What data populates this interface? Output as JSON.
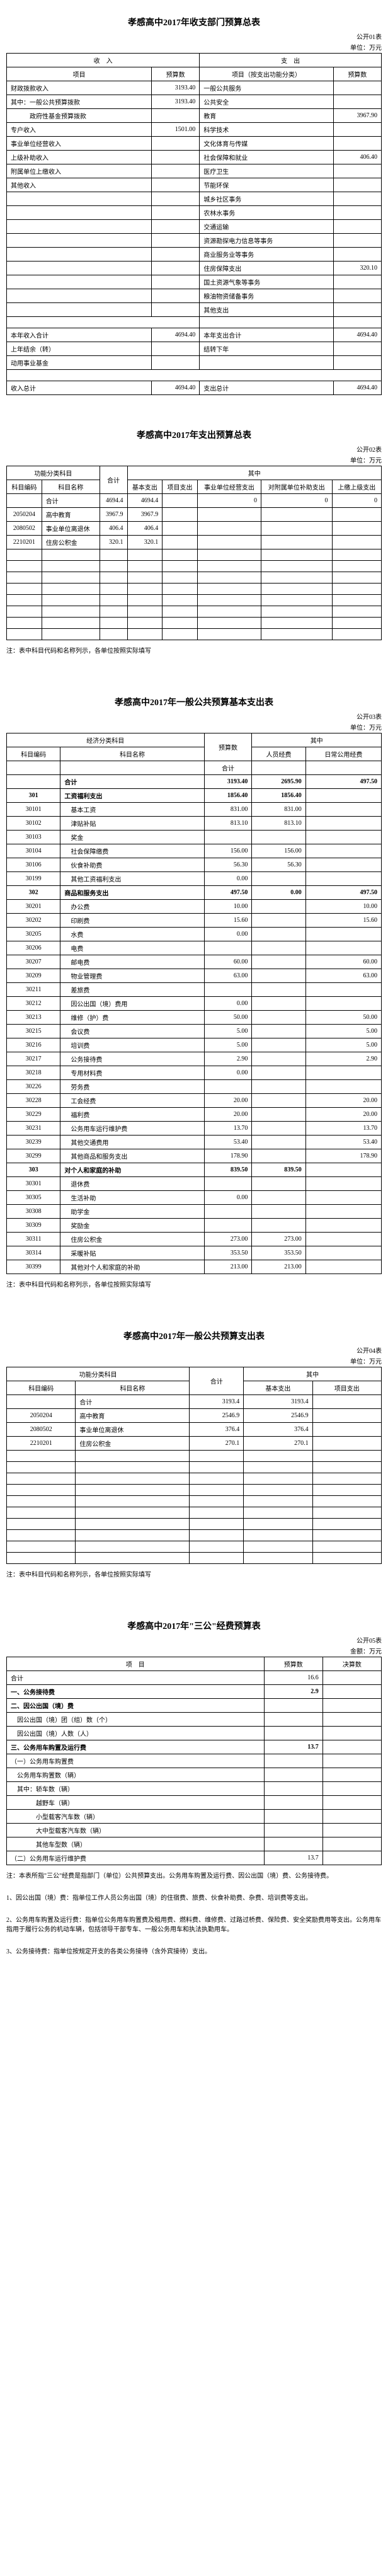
{
  "meta": {
    "unit_label": "单位：万元"
  },
  "t1": {
    "title": "孝感高中2017年收支部门预算总表",
    "corner": "公开01表",
    "income_header": "收　入",
    "expend_header": "支　出",
    "col_project": "项目",
    "col_budget": "预算数",
    "col_project2": "项目（按支出功能分类）",
    "col_budget2": "预算数",
    "rows_left": [
      {
        "name": "财政拨款收入",
        "val": "3193.40"
      },
      {
        "name": "其中：一般公共预算拨款",
        "val": "3193.40"
      },
      {
        "name": "　　　政府性基金预算拨款",
        "val": ""
      },
      {
        "name": "专户收入",
        "val": "1501.00"
      },
      {
        "name": "事业单位经营收入",
        "val": ""
      },
      {
        "name": "上级补助收入",
        "val": ""
      },
      {
        "name": "附属单位上缴收入",
        "val": ""
      },
      {
        "name": "其他收入",
        "val": ""
      },
      {
        "name": "",
        "val": ""
      },
      {
        "name": "",
        "val": ""
      },
      {
        "name": "",
        "val": ""
      },
      {
        "name": "",
        "val": ""
      },
      {
        "name": "",
        "val": ""
      },
      {
        "name": "",
        "val": ""
      },
      {
        "name": "",
        "val": ""
      }
    ],
    "rows_right": [
      {
        "name": "一般公共服务",
        "val": ""
      },
      {
        "name": "公共安全",
        "val": ""
      },
      {
        "name": "教育",
        "val": "3967.90"
      },
      {
        "name": "科学技术",
        "val": ""
      },
      {
        "name": "文化体育与传媒",
        "val": ""
      },
      {
        "name": "社会保障和就业",
        "val": "406.40"
      },
      {
        "name": "医疗卫生",
        "val": ""
      },
      {
        "name": "节能环保",
        "val": ""
      },
      {
        "name": "城乡社区事务",
        "val": ""
      },
      {
        "name": "农林水事务",
        "val": ""
      },
      {
        "name": "交通运输",
        "val": ""
      },
      {
        "name": "资源勘探电力信息等事务",
        "val": ""
      },
      {
        "name": "商业服务业等事务",
        "val": ""
      },
      {
        "name": "住房保障支出",
        "val": "320.10"
      },
      {
        "name": "国土资源气象等事务",
        "val": ""
      },
      {
        "name": "粮油物资储备事务",
        "val": ""
      },
      {
        "name": "其他支出",
        "val": ""
      }
    ],
    "sum_left_label": "本年收入合计",
    "sum_left_val": "4694.40",
    "sum_right_label": "本年支出合计",
    "sum_right_val": "4694.40",
    "carry_left": "上年结余（转）",
    "carry_right": "结转下年",
    "fund_left": "动用事业基金",
    "total_left_label": "收入总计",
    "total_left_val": "4694.40",
    "total_right_label": "支出总计",
    "total_right_val": "4694.40"
  },
  "t2": {
    "title": "孝感高中2017年支出预算总表",
    "corner": "公开02表",
    "h_func": "功能分类科目",
    "h_total": "合计",
    "h_inner": "其中",
    "h_code": "科目编码",
    "h_name": "科目名称",
    "h_basic": "基本支出",
    "h_proj": "项目支出",
    "h_biz": "事业单位经营支出",
    "h_aid": "对附属单位补助支出",
    "h_up": "上缴上级支出",
    "rows": [
      {
        "code": "",
        "name": "合计",
        "total": "4694.4",
        "basic": "4694.4",
        "proj": "",
        "biz": "0",
        "aid": "0",
        "up": "0"
      },
      {
        "code": "2050204",
        "name": "高中教育",
        "total": "3967.9",
        "basic": "3967.9",
        "proj": "",
        "biz": "",
        "aid": "",
        "up": ""
      },
      {
        "code": "2080502",
        "name": "事业单位离退休",
        "total": "406.4",
        "basic": "406.4",
        "proj": "",
        "biz": "",
        "aid": "",
        "up": ""
      },
      {
        "code": "2210201",
        "name": "住房公积金",
        "total": "320.1",
        "basic": "320.1",
        "proj": "",
        "biz": "",
        "aid": "",
        "up": ""
      }
    ],
    "empty_rows": 8,
    "note": "注：表中科目代码和名称列示，各单位按照实际填写"
  },
  "t3": {
    "title": "孝感高中2017年一般公共预算基本支出表",
    "corner": "公开03表",
    "h_econ": "经济分类科目",
    "h_code": "科目编码",
    "h_name": "科目名称",
    "h_budget": "预算数",
    "h_inner": "其中",
    "h_total": "合计",
    "h_person": "人员经费",
    "h_daily": "日常公用经费",
    "rows": [
      {
        "code": "",
        "name": "合计",
        "total": "3193.40",
        "p": "2695.90",
        "d": "497.50",
        "bold": true
      },
      {
        "code": "301",
        "name": "工资福利支出",
        "total": "1856.40",
        "p": "1856.40",
        "d": "",
        "bold": true
      },
      {
        "code": "30101",
        "name": "　基本工资",
        "total": "831.00",
        "p": "831.00",
        "d": ""
      },
      {
        "code": "30102",
        "name": "　津贴补贴",
        "total": "813.10",
        "p": "813.10",
        "d": ""
      },
      {
        "code": "30103",
        "name": "　奖金",
        "total": "",
        "p": "",
        "d": ""
      },
      {
        "code": "30104",
        "name": "　社会保障缴费",
        "total": "156.00",
        "p": "156.00",
        "d": ""
      },
      {
        "code": "30106",
        "name": "　伙食补助费",
        "total": "56.30",
        "p": "56.30",
        "d": ""
      },
      {
        "code": "30199",
        "name": "　其他工资福利支出",
        "total": "0.00",
        "p": "",
        "d": ""
      },
      {
        "code": "302",
        "name": "商品和服务支出",
        "total": "497.50",
        "p": "0.00",
        "d": "497.50",
        "bold": true
      },
      {
        "code": "30201",
        "name": "　办公费",
        "total": "10.00",
        "p": "",
        "d": "10.00"
      },
      {
        "code": "30202",
        "name": "　印刷费",
        "total": "15.60",
        "p": "",
        "d": "15.60"
      },
      {
        "code": "30205",
        "name": "　水费",
        "total": "0.00",
        "p": "",
        "d": ""
      },
      {
        "code": "30206",
        "name": "　电费",
        "total": "",
        "p": "",
        "d": ""
      },
      {
        "code": "30207",
        "name": "　邮电费",
        "total": "60.00",
        "p": "",
        "d": "60.00"
      },
      {
        "code": "30209",
        "name": "　物业管理费",
        "total": "63.00",
        "p": "",
        "d": "63.00"
      },
      {
        "code": "30211",
        "name": "　差旅费",
        "total": "",
        "p": "",
        "d": ""
      },
      {
        "code": "30212",
        "name": "　因公出国（境）费用",
        "total": "0.00",
        "p": "",
        "d": ""
      },
      {
        "code": "30213",
        "name": "　维修（护）费",
        "total": "50.00",
        "p": "",
        "d": "50.00"
      },
      {
        "code": "30215",
        "name": "　会议费",
        "total": "5.00",
        "p": "",
        "d": "5.00"
      },
      {
        "code": "30216",
        "name": "　培训费",
        "total": "5.00",
        "p": "",
        "d": "5.00"
      },
      {
        "code": "30217",
        "name": "　公务接待费",
        "total": "2.90",
        "p": "",
        "d": "2.90"
      },
      {
        "code": "30218",
        "name": "　专用材料费",
        "total": "0.00",
        "p": "",
        "d": ""
      },
      {
        "code": "30226",
        "name": "　劳务费",
        "total": "",
        "p": "",
        "d": ""
      },
      {
        "code": "30228",
        "name": "　工会经费",
        "total": "20.00",
        "p": "",
        "d": "20.00"
      },
      {
        "code": "30229",
        "name": "　福利费",
        "total": "20.00",
        "p": "",
        "d": "20.00"
      },
      {
        "code": "30231",
        "name": "　公务用车运行维护费",
        "total": "13.70",
        "p": "",
        "d": "13.70"
      },
      {
        "code": "30239",
        "name": "　其他交通费用",
        "total": "53.40",
        "p": "",
        "d": "53.40"
      },
      {
        "code": "30299",
        "name": "　其他商品和服务支出",
        "total": "178.90",
        "p": "",
        "d": "178.90"
      },
      {
        "code": "303",
        "name": "对个人和家庭的补助",
        "total": "839.50",
        "p": "839.50",
        "d": "",
        "bold": true
      },
      {
        "code": "30301",
        "name": "　退休费",
        "total": "",
        "p": "",
        "d": ""
      },
      {
        "code": "30305",
        "name": "　生活补助",
        "total": "0.00",
        "p": "",
        "d": ""
      },
      {
        "code": "30308",
        "name": "　助学金",
        "total": "",
        "p": "",
        "d": ""
      },
      {
        "code": "30309",
        "name": "　奖励金",
        "total": "",
        "p": "",
        "d": ""
      },
      {
        "code": "30311",
        "name": "　住房公积金",
        "total": "273.00",
        "p": "273.00",
        "d": ""
      },
      {
        "code": "30314",
        "name": "　采暖补贴",
        "total": "353.50",
        "p": "353.50",
        "d": ""
      },
      {
        "code": "30399",
        "name": "　其他对个人和家庭的补助",
        "total": "213.00",
        "p": "213.00",
        "d": ""
      }
    ],
    "note": "注：表中科目代码和名称列示，各单位按照实际填写"
  },
  "t4": {
    "title": "孝感高中2017年一般公共预算支出表",
    "corner": "公开04表",
    "h_func": "功能分类科目",
    "h_code": "科目编码",
    "h_name": "科目名称",
    "h_total": "合计",
    "h_inner": "其中",
    "h_basic": "基本支出",
    "h_proj": "项目支出",
    "rows": [
      {
        "code": "",
        "name": "合计",
        "total": "3193.4",
        "basic": "3193.4",
        "proj": ""
      },
      {
        "code": "2050204",
        "name": "高中教育",
        "total": "2546.9",
        "basic": "2546.9",
        "proj": ""
      },
      {
        "code": "2080502",
        "name": "事业单位离退休",
        "total": "376.4",
        "basic": "376.4",
        "proj": ""
      },
      {
        "code": "2210201",
        "name": "住房公积金",
        "total": "270.1",
        "basic": "270.1",
        "proj": ""
      }
    ],
    "empty_rows": 10,
    "note": "注：表中科目代码和名称列示，各单位按照实际填写"
  },
  "t5": {
    "title": "孝感高中2017年\"三公\"经费预算表",
    "corner": "公开05表",
    "unit": "金额：万元",
    "h_item": "项　目",
    "h_budget": "预算数",
    "h_final": "决算数",
    "rows": [
      {
        "name": "合计",
        "b": "16.6",
        "f": ""
      },
      {
        "name": "一、公务接待费",
        "b": "2.9",
        "f": "",
        "bold": true
      },
      {
        "name": "二、因公出国（境）费",
        "b": "",
        "f": "",
        "bold": true
      },
      {
        "name": "　因公出国（境）团（组）数（个）",
        "b": "",
        "f": ""
      },
      {
        "name": "　因公出国（境）人数（人）",
        "b": "",
        "f": ""
      },
      {
        "name": "三、公务用车购置及运行费",
        "b": "13.7",
        "f": "",
        "bold": true
      },
      {
        "name": "（一）公务用车购置费",
        "b": "",
        "f": ""
      },
      {
        "name": "　公务用车购置数（辆）",
        "b": "",
        "f": ""
      },
      {
        "name": "　其中：轿车数（辆）",
        "b": "",
        "f": ""
      },
      {
        "name": "　　　　越野车（辆）",
        "b": "",
        "f": ""
      },
      {
        "name": "　　　　小型载客汽车数（辆）",
        "b": "",
        "f": ""
      },
      {
        "name": "　　　　大中型载客汽车数（辆）",
        "b": "",
        "f": ""
      },
      {
        "name": "　　　　其他车型数（辆）",
        "b": "",
        "f": ""
      },
      {
        "name": "（二）公务用车运行维护费",
        "b": "13.7",
        "f": ""
      }
    ],
    "notes": [
      "注：本表所指\"三公\"经费是指部门（单位）公共预算支出。公务用车购置及运行费、因公出国（境）费、公务接待费。",
      "1、因公出国（境）费：指单位工作人员公务出国（境）的住宿费、旅费、伙食补助费、杂费、培训费等支出。",
      "2、公务用车购置及运行费：指单位公务用车购置费及租用费、燃料费、维修费、过路过桥费、保险费、安全奖励费用等支出。公务用车指用于履行公务的机动车辆，包括领导干部专车、一般公务用车和执法执勤用车。",
      "3、公务接待费：指单位按规定开支的各类公务接待（含外宾接待）支出。"
    ]
  }
}
